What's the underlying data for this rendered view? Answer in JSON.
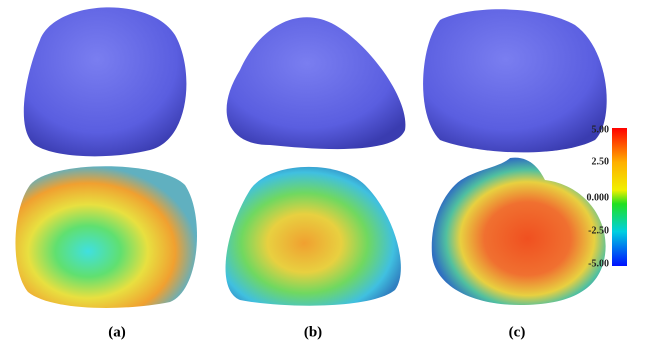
{
  "panels": [
    {
      "label": "(a)"
    },
    {
      "label": "(b)"
    },
    {
      "label": "(c)"
    }
  ],
  "colorbar": {
    "ticks": [
      "5.00",
      "2.50",
      "0.000",
      "-2.50",
      "-5.00"
    ]
  }
}
